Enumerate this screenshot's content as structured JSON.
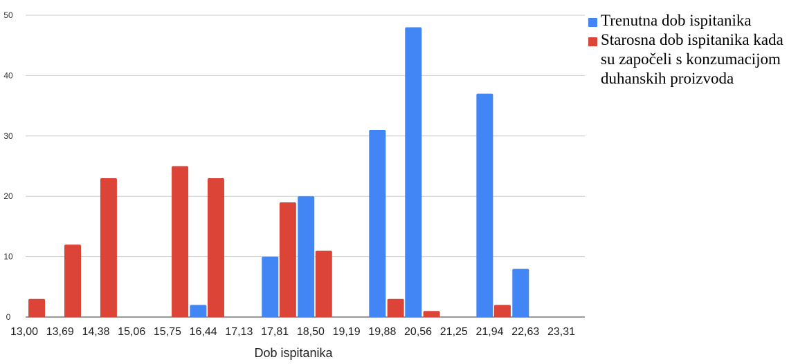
{
  "chart_data": {
    "type": "bar",
    "categories": [
      "13,00",
      "13,69",
      "14,38",
      "15,06",
      "15,75",
      "16,44",
      "17,13",
      "17,81",
      "18,50",
      "19,19",
      "19,88",
      "20,56",
      "21,25",
      "21,94",
      "22,63",
      "23,31"
    ],
    "ylim": [
      0,
      50
    ],
    "yticks": [
      "0",
      "10",
      "20",
      "30",
      "40",
      "50"
    ],
    "xlabel": "Dob ispitanika",
    "ylabel": "",
    "grid": true,
    "legend_position": "right",
    "bars": [
      {
        "series": 1,
        "x_center": 13.24,
        "value": 3
      },
      {
        "series": 1,
        "x_center": 13.93,
        "value": 12
      },
      {
        "series": 1,
        "x_center": 14.62,
        "value": 23
      },
      {
        "series": 1,
        "x_center": 15.99,
        "value": 25
      },
      {
        "series": 0,
        "x_center": 16.34,
        "value": 2
      },
      {
        "series": 1,
        "x_center": 16.68,
        "value": 23
      },
      {
        "series": 0,
        "x_center": 17.72,
        "value": 10
      },
      {
        "series": 1,
        "x_center": 18.06,
        "value": 19
      },
      {
        "series": 0,
        "x_center": 18.41,
        "value": 20
      },
      {
        "series": 1,
        "x_center": 18.75,
        "value": 11
      },
      {
        "series": 0,
        "x_center": 19.78,
        "value": 31
      },
      {
        "series": 1,
        "x_center": 20.13,
        "value": 3
      },
      {
        "series": 0,
        "x_center": 20.47,
        "value": 48
      },
      {
        "series": 1,
        "x_center": 20.82,
        "value": 1
      },
      {
        "series": 0,
        "x_center": 21.84,
        "value": 37
      },
      {
        "series": 1,
        "x_center": 22.18,
        "value": 2
      },
      {
        "series": 0,
        "x_center": 22.53,
        "value": 8
      }
    ],
    "series": [
      {
        "name": "Trenutna dob ispitanika",
        "color": "#4285f4"
      },
      {
        "name": "Starosna dob ispitanika kada su započeli s konzumacijom duhanskih proizvoda",
        "color": "#db4437"
      }
    ]
  }
}
